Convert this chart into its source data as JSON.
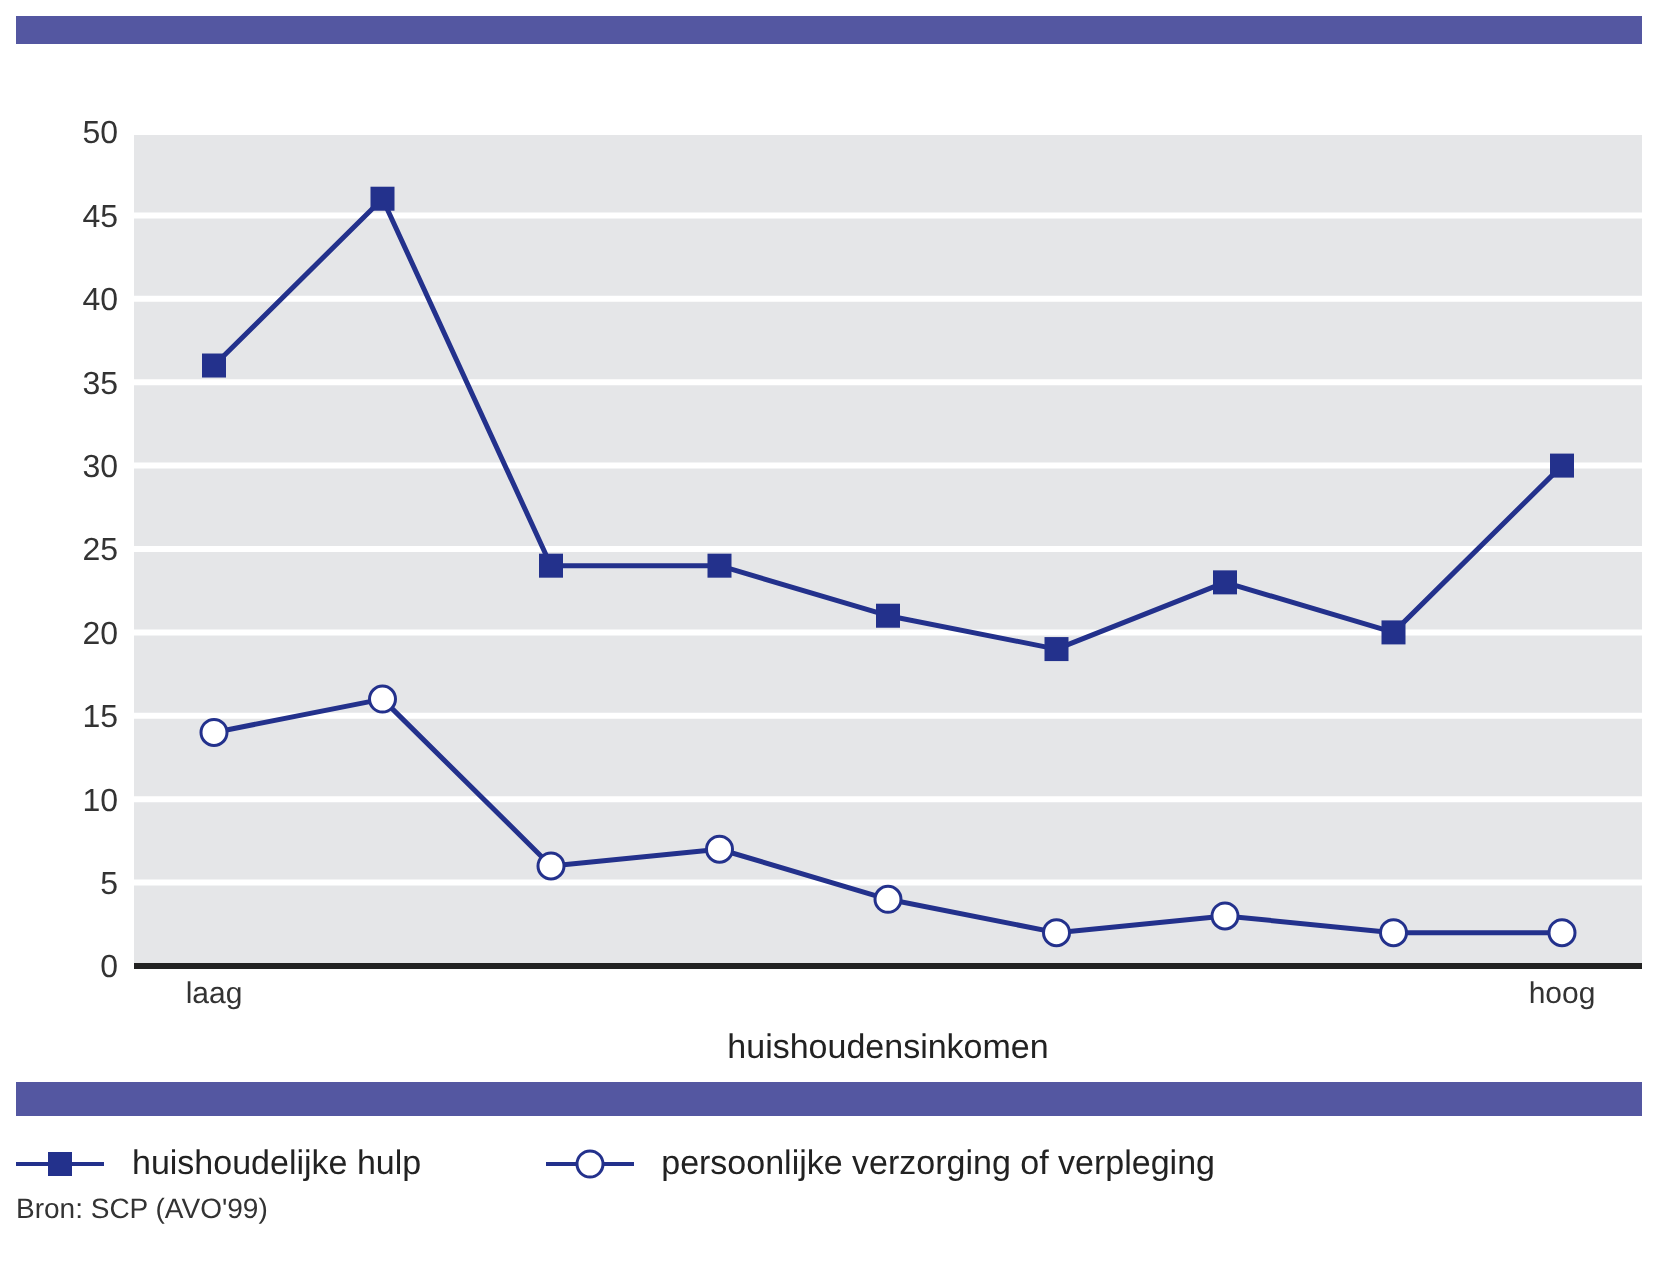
{
  "chart_data": {
    "type": "line",
    "xlabel": "huishoudensinkomen",
    "categories": [
      "laag",
      null,
      null,
      null,
      null,
      null,
      null,
      null,
      "hoog"
    ],
    "series": [
      {
        "name": "huishoudelijke hulp",
        "color": "#23318c",
        "marker": "square",
        "values": [
          36,
          46,
          24,
          24,
          21,
          19,
          23,
          20,
          30
        ]
      },
      {
        "name": "persoonlijke verzorging of verpleging",
        "color": "#23318c",
        "marker": "circle",
        "values": [
          14,
          16,
          6,
          7,
          4,
          2,
          3,
          2,
          2
        ]
      }
    ],
    "ylim": [
      0,
      50
    ],
    "yticks": [
      0,
      5,
      10,
      15,
      20,
      25,
      30,
      35,
      40,
      45,
      50
    ],
    "grid": "y",
    "legend": "bottom",
    "line_style": "solid",
    "annotations": [
      "Bron: SCP (AVO'99)"
    ]
  }
}
